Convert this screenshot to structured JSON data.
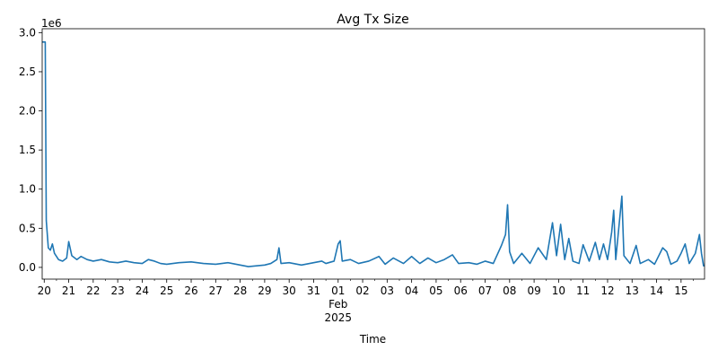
{
  "chart_data": {
    "type": "line",
    "title": "Avg Tx Size",
    "xlabel": "Time",
    "ylabel": "",
    "y_offset_label": "1e6",
    "y_scale_note": "values in units of 1e6",
    "xlim": [
      "2025-01-19T22:00",
      "2025-02-15T23:00"
    ],
    "ylim": [
      -0.15,
      3.05
    ],
    "grid": false,
    "legend": "none",
    "colors": {
      "line": "#1f77b4",
      "axis": "#000000",
      "background": "#ffffff"
    },
    "y_ticks": [
      "0.0",
      "0.5",
      "1.0",
      "1.5",
      "2.0",
      "2.5",
      "3.0"
    ],
    "y_tick_values": [
      0.0,
      0.5,
      1.0,
      1.5,
      2.0,
      2.5,
      3.0
    ],
    "x_major_ticks": [
      {
        "date": "2025-01-20",
        "label": "20"
      },
      {
        "date": "2025-01-21",
        "label": "21"
      },
      {
        "date": "2025-01-22",
        "label": "22"
      },
      {
        "date": "2025-01-23",
        "label": "23"
      },
      {
        "date": "2025-01-24",
        "label": "24"
      },
      {
        "date": "2025-01-25",
        "label": "25"
      },
      {
        "date": "2025-01-26",
        "label": "26"
      },
      {
        "date": "2025-01-27",
        "label": "27"
      },
      {
        "date": "2025-01-28",
        "label": "28"
      },
      {
        "date": "2025-01-29",
        "label": "29"
      },
      {
        "date": "2025-01-30",
        "label": "30"
      },
      {
        "date": "2025-01-31",
        "label": "31"
      },
      {
        "date": "2025-02-01",
        "label": "01",
        "sub1": "Feb",
        "sub2": "2025"
      },
      {
        "date": "2025-02-02",
        "label": "02"
      },
      {
        "date": "2025-02-03",
        "label": "03"
      },
      {
        "date": "2025-02-04",
        "label": "04"
      },
      {
        "date": "2025-02-05",
        "label": "05"
      },
      {
        "date": "2025-02-06",
        "label": "06"
      },
      {
        "date": "2025-02-07",
        "label": "07"
      },
      {
        "date": "2025-02-08",
        "label": "08"
      },
      {
        "date": "2025-02-09",
        "label": "09"
      },
      {
        "date": "2025-02-10",
        "label": "10"
      },
      {
        "date": "2025-02-11",
        "label": "11"
      },
      {
        "date": "2025-02-12",
        "label": "12"
      },
      {
        "date": "2025-02-13",
        "label": "13"
      },
      {
        "date": "2025-02-14",
        "label": "14"
      },
      {
        "date": "2025-02-15",
        "label": "15"
      }
    ],
    "series": [
      {
        "name": "",
        "points": [
          [
            "2025-01-19T22:00",
            2.88
          ],
          [
            "2025-01-20T01:00",
            2.88
          ],
          [
            "2025-01-20T02:00",
            0.6
          ],
          [
            "2025-01-20T04:00",
            0.25
          ],
          [
            "2025-01-20T06:00",
            0.22
          ],
          [
            "2025-01-20T08:00",
            0.3
          ],
          [
            "2025-01-20T10:00",
            0.18
          ],
          [
            "2025-01-20T14:00",
            0.1
          ],
          [
            "2025-01-20T18:00",
            0.08
          ],
          [
            "2025-01-20T22:00",
            0.12
          ],
          [
            "2025-01-21T00:00",
            0.33
          ],
          [
            "2025-01-21T03:00",
            0.15
          ],
          [
            "2025-01-21T08:00",
            0.1
          ],
          [
            "2025-01-21T12:00",
            0.14
          ],
          [
            "2025-01-21T18:00",
            0.1
          ],
          [
            "2025-01-22T00:00",
            0.08
          ],
          [
            "2025-01-22T08:00",
            0.1
          ],
          [
            "2025-01-22T16:00",
            0.07
          ],
          [
            "2025-01-23T00:00",
            0.06
          ],
          [
            "2025-01-23T08:00",
            0.08
          ],
          [
            "2025-01-23T16:00",
            0.06
          ],
          [
            "2025-01-24T00:00",
            0.05
          ],
          [
            "2025-01-24T06:00",
            0.1
          ],
          [
            "2025-01-24T12:00",
            0.08
          ],
          [
            "2025-01-24T18:00",
            0.05
          ],
          [
            "2025-01-25T00:00",
            0.04
          ],
          [
            "2025-01-25T12:00",
            0.06
          ],
          [
            "2025-01-26T00:00",
            0.07
          ],
          [
            "2025-01-26T12:00",
            0.05
          ],
          [
            "2025-01-27T00:00",
            0.04
          ],
          [
            "2025-01-27T12:00",
            0.06
          ],
          [
            "2025-01-28T00:00",
            0.03
          ],
          [
            "2025-01-28T08:00",
            0.01
          ],
          [
            "2025-01-28T16:00",
            0.02
          ],
          [
            "2025-01-29T00:00",
            0.03
          ],
          [
            "2025-01-29T06:00",
            0.05
          ],
          [
            "2025-01-29T12:00",
            0.1
          ],
          [
            "2025-01-29T14:00",
            0.25
          ],
          [
            "2025-01-29T16:00",
            0.05
          ],
          [
            "2025-01-30T00:00",
            0.06
          ],
          [
            "2025-01-30T12:00",
            0.03
          ],
          [
            "2025-01-31T00:00",
            0.06
          ],
          [
            "2025-01-31T08:00",
            0.08
          ],
          [
            "2025-01-31T12:00",
            0.05
          ],
          [
            "2025-01-31T20:00",
            0.08
          ],
          [
            "2025-02-01T00:00",
            0.3
          ],
          [
            "2025-02-01T02:00",
            0.34
          ],
          [
            "2025-02-01T04:00",
            0.08
          ],
          [
            "2025-02-01T12:00",
            0.1
          ],
          [
            "2025-02-01T20:00",
            0.05
          ],
          [
            "2025-02-02T06:00",
            0.08
          ],
          [
            "2025-02-02T16:00",
            0.14
          ],
          [
            "2025-02-02T22:00",
            0.04
          ],
          [
            "2025-02-03T06:00",
            0.12
          ],
          [
            "2025-02-03T16:00",
            0.05
          ],
          [
            "2025-02-04T00:00",
            0.14
          ],
          [
            "2025-02-04T08:00",
            0.05
          ],
          [
            "2025-02-04T16:00",
            0.12
          ],
          [
            "2025-02-05T00:00",
            0.06
          ],
          [
            "2025-02-05T08:00",
            0.1
          ],
          [
            "2025-02-05T16:00",
            0.16
          ],
          [
            "2025-02-05T22:00",
            0.05
          ],
          [
            "2025-02-06T08:00",
            0.06
          ],
          [
            "2025-02-06T16:00",
            0.04
          ],
          [
            "2025-02-07T00:00",
            0.08
          ],
          [
            "2025-02-07T08:00",
            0.05
          ],
          [
            "2025-02-07T16:00",
            0.28
          ],
          [
            "2025-02-07T20:00",
            0.42
          ],
          [
            "2025-02-07T22:00",
            0.8
          ],
          [
            "2025-02-08T00:00",
            0.2
          ],
          [
            "2025-02-08T04:00",
            0.05
          ],
          [
            "2025-02-08T12:00",
            0.18
          ],
          [
            "2025-02-08T20:00",
            0.05
          ],
          [
            "2025-02-09T04:00",
            0.25
          ],
          [
            "2025-02-09T12:00",
            0.1
          ],
          [
            "2025-02-09T18:00",
            0.57
          ],
          [
            "2025-02-09T22:00",
            0.15
          ],
          [
            "2025-02-10T02:00",
            0.55
          ],
          [
            "2025-02-10T06:00",
            0.1
          ],
          [
            "2025-02-10T10:00",
            0.37
          ],
          [
            "2025-02-10T14:00",
            0.08
          ],
          [
            "2025-02-10T20:00",
            0.05
          ],
          [
            "2025-02-11T00:00",
            0.29
          ],
          [
            "2025-02-11T06:00",
            0.08
          ],
          [
            "2025-02-11T12:00",
            0.32
          ],
          [
            "2025-02-11T16:00",
            0.1
          ],
          [
            "2025-02-11T20:00",
            0.3
          ],
          [
            "2025-02-12T00:00",
            0.1
          ],
          [
            "2025-02-12T04:00",
            0.45
          ],
          [
            "2025-02-12T06:00",
            0.73
          ],
          [
            "2025-02-12T08:00",
            0.1
          ],
          [
            "2025-02-12T14:00",
            0.91
          ],
          [
            "2025-02-12T16:00",
            0.15
          ],
          [
            "2025-02-12T22:00",
            0.05
          ],
          [
            "2025-02-13T04:00",
            0.28
          ],
          [
            "2025-02-13T08:00",
            0.05
          ],
          [
            "2025-02-13T16:00",
            0.1
          ],
          [
            "2025-02-13T22:00",
            0.04
          ],
          [
            "2025-02-14T06:00",
            0.25
          ],
          [
            "2025-02-14T10:00",
            0.2
          ],
          [
            "2025-02-14T14:00",
            0.04
          ],
          [
            "2025-02-14T20:00",
            0.08
          ],
          [
            "2025-02-15T00:00",
            0.18
          ],
          [
            "2025-02-15T04:00",
            0.3
          ],
          [
            "2025-02-15T08:00",
            0.05
          ],
          [
            "2025-02-15T14:00",
            0.18
          ],
          [
            "2025-02-15T18:00",
            0.42
          ],
          [
            "2025-02-15T20:00",
            0.18
          ],
          [
            "2025-02-15T22:00",
            0.02
          ],
          [
            "2025-02-15T23:00",
            0.02
          ]
        ]
      }
    ]
  }
}
